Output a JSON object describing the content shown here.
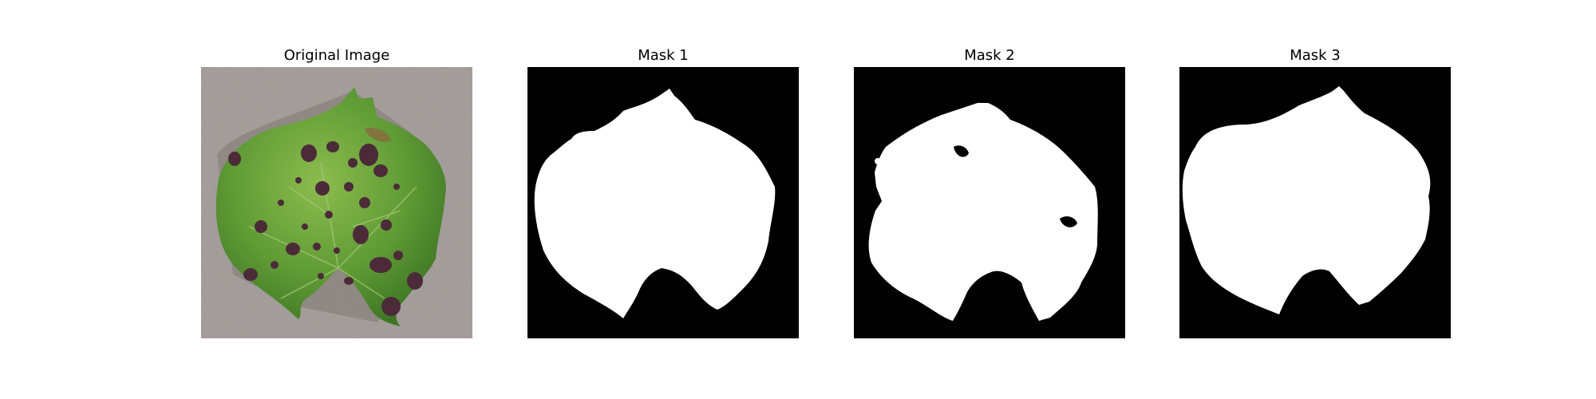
{
  "panels": [
    {
      "title": "Original Image",
      "kind": "photo"
    },
    {
      "title": "Mask 1",
      "kind": "mask"
    },
    {
      "title": "Mask 2",
      "kind": "mask"
    },
    {
      "title": "Mask 3",
      "kind": "mask"
    }
  ],
  "colors": {
    "background": "#ffffff",
    "mask_fg": "#ffffff",
    "mask_bg": "#000000",
    "leaf_green": "#5e9a34",
    "leaf_light": "#86b34a",
    "lesion": "#4a2a36",
    "ground": "#a9a29f"
  }
}
